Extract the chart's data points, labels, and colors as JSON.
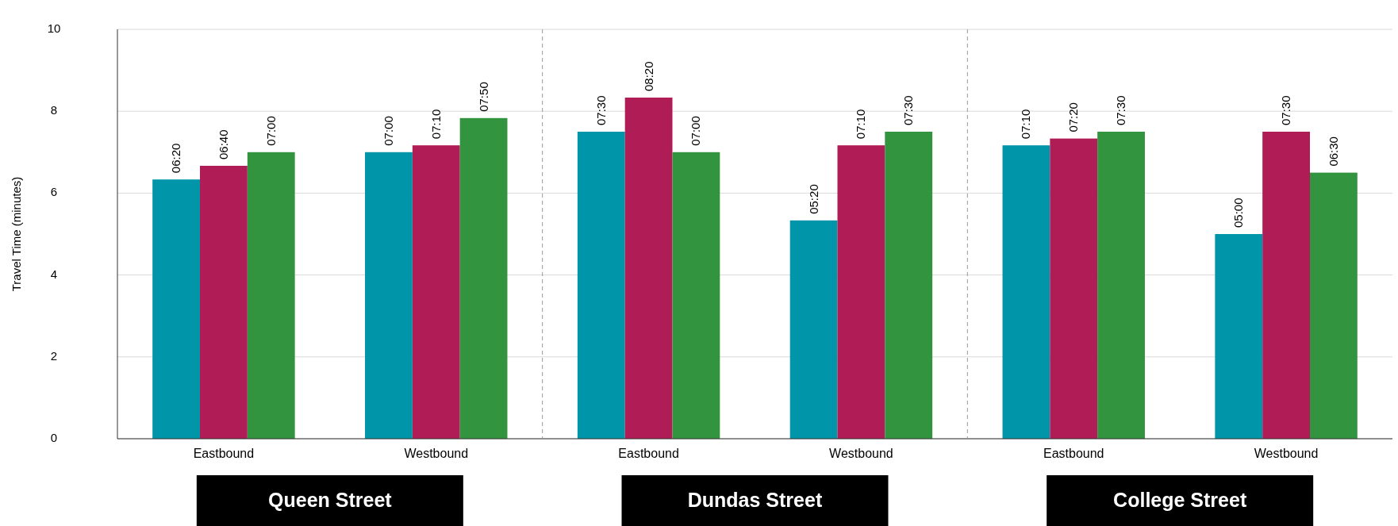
{
  "chart_data": {
    "type": "bar",
    "ylabel": "Travel Time (minutes)",
    "categories": [
      "Eastbound",
      "Westbound",
      "Eastbound",
      "Westbound",
      "Eastbound",
      "Westbound"
    ],
    "series": [
      {
        "color": "#0095a8",
        "values": [
          6.333,
          7,
          7.5,
          5.333,
          7.167,
          5
        ],
        "value_labels": [
          "06:20",
          "07:00",
          "07:30",
          "05:20",
          "07:10",
          "05:00"
        ]
      },
      {
        "color": "#b01c56",
        "values": [
          6.667,
          7.167,
          8.333,
          7.167,
          7.333,
          7.5
        ],
        "value_labels": [
          "06:40",
          "07:10",
          "08:20",
          "07:10",
          "07:20",
          "07:30"
        ]
      },
      {
        "color": "#339440",
        "values": [
          7,
          7.833,
          7,
          7.5,
          7.5,
          6.5
        ],
        "value_labels": [
          "07:00",
          "07:50",
          "07:00",
          "07:30",
          "07:30",
          "06:30"
        ]
      }
    ],
    "ylim": [
      0,
      10
    ],
    "yticks": [
      0,
      2,
      4,
      6,
      8,
      10
    ],
    "grid": "y",
    "annotations": [
      "Queen Street",
      "Dundas Street",
      "College Street"
    ]
  }
}
